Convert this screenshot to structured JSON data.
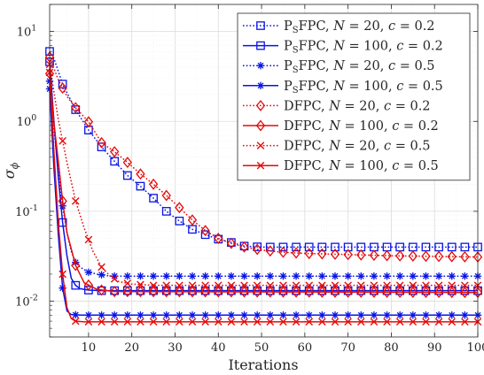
{
  "chart_data": {
    "type": "line",
    "xlabel": "Iterations",
    "ylabel": "σ",
    "ylabel_subscript": "ϕ",
    "xlim": [
      1,
      100
    ],
    "ylim": [
      0.004,
      20
    ],
    "yscale": "log",
    "grid": true,
    "minor_grid": true,
    "legend_position": "top-right",
    "x_ticks": [
      10,
      20,
      30,
      40,
      50,
      60,
      70,
      80,
      90,
      100
    ],
    "y_ticks": [
      0.01,
      0.1,
      1,
      10
    ],
    "y_tick_base": "10",
    "y_tick_exponents": [
      "-2",
      "-1",
      "0",
      "1"
    ],
    "colors": {
      "psfpc": "#0a14e6",
      "dfpc": "#e60a0a"
    },
    "series": [
      {
        "name": "PSFPC, N = 20, c = 0.2",
        "label_parts": {
          "method": "P",
          "method_sub": "S",
          "method_rest": "FPC",
          "N": "20",
          "c": "0.2"
        },
        "color_key": "psfpc",
        "dash": "dotted",
        "marker": "square",
        "marker_every": 3,
        "points": [
          [
            1,
            6.0
          ],
          [
            2,
            5.0
          ],
          [
            4,
            2.6
          ],
          [
            7,
            1.35
          ],
          [
            10,
            0.8
          ],
          [
            13,
            0.52
          ],
          [
            16,
            0.36
          ],
          [
            19,
            0.25
          ],
          [
            22,
            0.19
          ],
          [
            25,
            0.14
          ],
          [
            28,
            0.1
          ],
          [
            31,
            0.078
          ],
          [
            34,
            0.063
          ],
          [
            37,
            0.055
          ],
          [
            40,
            0.049
          ],
          [
            43,
            0.045
          ],
          [
            46,
            0.041
          ],
          [
            50,
            0.04
          ],
          [
            100,
            0.04
          ]
        ]
      },
      {
        "name": "PSFPC, N = 100, c = 0.2",
        "label_parts": {
          "method": "P",
          "method_sub": "S",
          "method_rest": "FPC",
          "N": "100",
          "c": "0.2"
        },
        "color_key": "psfpc",
        "dash": "solid",
        "marker": "square",
        "marker_every": 3,
        "points": [
          [
            1,
            4.6
          ],
          [
            2,
            1.0
          ],
          [
            3,
            0.24
          ],
          [
            4,
            0.075
          ],
          [
            5,
            0.032
          ],
          [
            6,
            0.018
          ],
          [
            7,
            0.015
          ],
          [
            8,
            0.0138
          ],
          [
            10,
            0.0133
          ],
          [
            13,
            0.0131
          ],
          [
            100,
            0.0131
          ]
        ]
      },
      {
        "name": "PSFPC, N = 20, c = 0.5",
        "label_parts": {
          "method": "P",
          "method_sub": "S",
          "method_rest": "FPC",
          "N": "20",
          "c": "0.5"
        },
        "color_key": "psfpc",
        "dash": "dotted",
        "marker": "asterisk",
        "marker_every": 3,
        "points": [
          [
            1,
            2.8
          ],
          [
            2,
            0.82
          ],
          [
            3,
            0.28
          ],
          [
            4,
            0.115
          ],
          [
            5,
            0.058
          ],
          [
            6,
            0.036
          ],
          [
            7,
            0.027
          ],
          [
            8,
            0.024
          ],
          [
            10,
            0.021
          ],
          [
            12,
            0.02
          ],
          [
            15,
            0.019
          ],
          [
            100,
            0.019
          ]
        ]
      },
      {
        "name": "PSFPC, N = 100, c = 0.5",
        "label_parts": {
          "method": "P",
          "method_sub": "S",
          "method_rest": "FPC",
          "N": "100",
          "c": "0.5"
        },
        "color_key": "psfpc",
        "dash": "solid",
        "marker": "asterisk",
        "marker_every": 3,
        "points": [
          [
            1,
            2.3
          ],
          [
            2,
            0.3
          ],
          [
            3,
            0.055
          ],
          [
            4,
            0.014
          ],
          [
            5,
            0.0078
          ],
          [
            6,
            0.0071
          ],
          [
            8,
            0.007
          ],
          [
            100,
            0.007
          ]
        ]
      },
      {
        "name": "DFPC, N = 20, c = 0.2",
        "label_parts": {
          "method": "DFPC",
          "N": "20",
          "c": "0.2"
        },
        "color_key": "dfpc",
        "dash": "dotted",
        "marker": "diamond",
        "marker_every": 3,
        "points": [
          [
            1,
            5.2
          ],
          [
            3,
            2.9
          ],
          [
            5,
            1.9
          ],
          [
            7,
            1.42
          ],
          [
            10,
            0.99
          ],
          [
            13,
            0.58
          ],
          [
            16,
            0.46
          ],
          [
            19,
            0.35
          ],
          [
            22,
            0.26
          ],
          [
            25,
            0.2
          ],
          [
            28,
            0.15
          ],
          [
            31,
            0.11
          ],
          [
            34,
            0.08
          ],
          [
            37,
            0.061
          ],
          [
            40,
            0.05
          ],
          [
            43,
            0.044
          ],
          [
            46,
            0.04
          ],
          [
            50,
            0.037
          ],
          [
            55,
            0.035
          ],
          [
            60,
            0.034
          ],
          [
            70,
            0.033
          ],
          [
            80,
            0.032
          ],
          [
            100,
            0.031
          ]
        ]
      },
      {
        "name": "DFPC, N = 100, c = 0.2",
        "label_parts": {
          "method": "DFPC",
          "N": "100",
          "c": "0.2"
        },
        "color_key": "dfpc",
        "dash": "solid",
        "marker": "diamond",
        "marker_every": 3,
        "points": [
          [
            1,
            3.4
          ],
          [
            2,
            0.95
          ],
          [
            3,
            0.36
          ],
          [
            4,
            0.13
          ],
          [
            5,
            0.058
          ],
          [
            7,
            0.025
          ],
          [
            9,
            0.016
          ],
          [
            12,
            0.0135
          ],
          [
            16,
            0.0128
          ],
          [
            100,
            0.0125
          ]
        ]
      },
      {
        "name": "DFPC, N = 20, c = 0.5",
        "label_parts": {
          "method": "DFPC",
          "N": "20",
          "c": "0.5"
        },
        "color_key": "dfpc",
        "dash": "dotted",
        "marker": "x",
        "marker_every": 3,
        "points": [
          [
            1,
            4.3
          ],
          [
            3,
            1.05
          ],
          [
            5,
            0.35
          ],
          [
            7,
            0.13
          ],
          [
            9,
            0.065
          ],
          [
            11,
            0.036
          ],
          [
            13,
            0.024
          ],
          [
            15,
            0.019
          ],
          [
            17,
            0.0165
          ],
          [
            20,
            0.0155
          ],
          [
            25,
            0.015
          ],
          [
            100,
            0.015
          ]
        ]
      },
      {
        "name": "DFPC, N = 100, c = 0.5",
        "label_parts": {
          "method": "DFPC",
          "N": "100",
          "c": "0.5"
        },
        "color_key": "dfpc",
        "dash": "solid",
        "marker": "x",
        "marker_every": 3,
        "points": [
          [
            1,
            3.5
          ],
          [
            2,
            0.45
          ],
          [
            3,
            0.075
          ],
          [
            4,
            0.02
          ],
          [
            5,
            0.0085
          ],
          [
            6,
            0.0064
          ],
          [
            7,
            0.006
          ],
          [
            9,
            0.0059
          ],
          [
            100,
            0.0059
          ]
        ]
      }
    ]
  }
}
